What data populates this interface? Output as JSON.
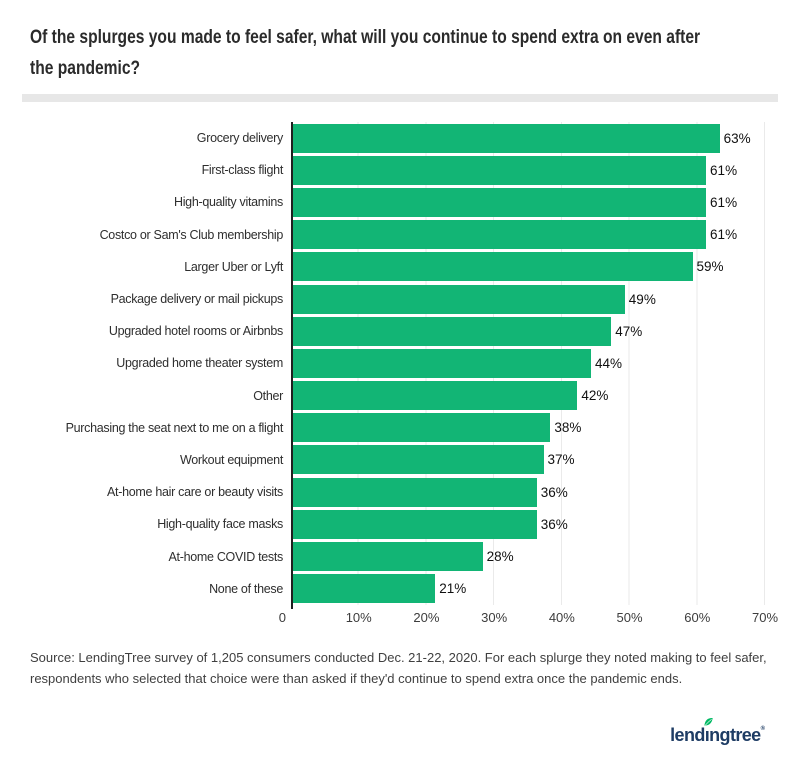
{
  "header": {
    "title": "Of the splurges you made to feel safer, what will you continue to spend extra on even after the pandemic?",
    "title_lines": [
      "Of the splurges you made to feel safer, what will you continue to spend extra on even after",
      "the pandemic?"
    ]
  },
  "chart_data": {
    "type": "bar",
    "orientation": "horizontal",
    "title": "Of the splurges you made to feel safer, what will you continue to spend extra on even after the pandemic?",
    "categories": [
      "Grocery delivery",
      "First-class flight",
      "High-quality vitamins",
      "Costco or Sam's Club membership",
      "Larger Uber or Lyft",
      "Package delivery or mail pickups",
      "Upgraded hotel rooms or Airbnbs",
      "Upgraded home theater system",
      "Other",
      "Purchasing the seat next to me on a flight",
      "Workout equipment",
      "At-home hair care or beauty visits",
      "High-quality face masks",
      "At-home COVID tests",
      "None of these"
    ],
    "values": [
      63,
      61,
      61,
      61,
      59,
      49,
      47,
      44,
      42,
      38,
      37,
      36,
      36,
      28,
      21
    ],
    "value_suffix": "%",
    "xlabel": "",
    "ylabel": "",
    "xlim": [
      0,
      70
    ],
    "x_ticks": [
      "0",
      "10%",
      "20%",
      "30%",
      "40%",
      "50%",
      "60%",
      "70%"
    ],
    "grid": "vertical-only",
    "legend": "none",
    "bar_color": "#12b575"
  },
  "source": "Source: LendingTree survey of 1,205 consumers conducted Dec. 21-22, 2020. For each splurge they noted making to feel safer, respondents who selected that choice were than asked if they'd continue to spend extra once the pandemic ends.",
  "logo": {
    "text_pre": "lend",
    "text_i": "ı",
    "text_post": "ngtree",
    "registered": "®",
    "navy": "#1e3c64",
    "leaf_green": "#00b964"
  },
  "colors": {
    "bar_green": "#12b575",
    "axis": "#1f1f1f",
    "gridline": "#eaeaea",
    "divider": "#e7e7e7",
    "title_text": "#2b2b2b",
    "body_text": "#3f3f3f"
  }
}
